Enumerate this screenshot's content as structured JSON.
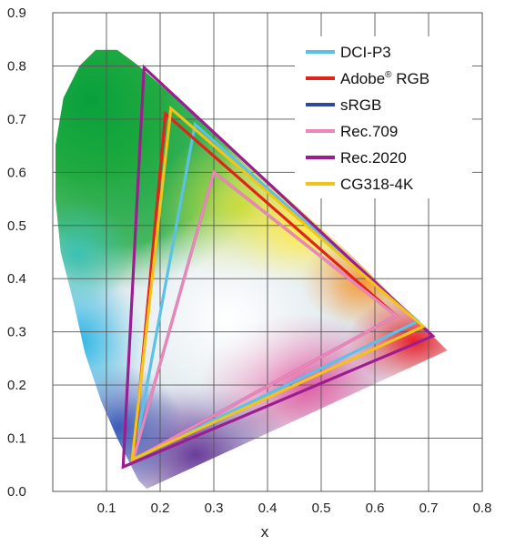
{
  "chart_data": {
    "type": "scatter",
    "title": "",
    "xlabel": "x",
    "ylabel": "",
    "xlim": [
      0.0,
      0.8
    ],
    "ylim": [
      0.0,
      0.9
    ],
    "x_ticks": [
      "0.1",
      "0.2",
      "0.3",
      "0.4",
      "0.5",
      "0.6",
      "0.7",
      "0.8"
    ],
    "y_ticks": [
      "0.0",
      "0.1",
      "0.2",
      "0.3",
      "0.4",
      "0.5",
      "0.6",
      "0.7",
      "0.8",
      "0.9"
    ],
    "grid": true,
    "legend_position": "top-right",
    "spectral_locus": [
      [
        0.175,
        0.005
      ],
      [
        0.16,
        0.02
      ],
      [
        0.14,
        0.06
      ],
      [
        0.12,
        0.1
      ],
      [
        0.09,
        0.17
      ],
      [
        0.06,
        0.26
      ],
      [
        0.04,
        0.35
      ],
      [
        0.015,
        0.45
      ],
      [
        0.005,
        0.55
      ],
      [
        0.005,
        0.65
      ],
      [
        0.02,
        0.74
      ],
      [
        0.05,
        0.8
      ],
      [
        0.08,
        0.83
      ],
      [
        0.12,
        0.83
      ],
      [
        0.16,
        0.8
      ],
      [
        0.25,
        0.72
      ],
      [
        0.35,
        0.63
      ],
      [
        0.45,
        0.54
      ],
      [
        0.55,
        0.45
      ],
      [
        0.65,
        0.35
      ],
      [
        0.735,
        0.265
      ]
    ],
    "series": [
      {
        "name": "DCI-P3",
        "color": "#5bc2e7",
        "points": [
          [
            0.68,
            0.32
          ],
          [
            0.265,
            0.69
          ],
          [
            0.15,
            0.06
          ]
        ]
      },
      {
        "name": "Adobe® RGB",
        "color": "#e2231a",
        "points": [
          [
            0.64,
            0.33
          ],
          [
            0.21,
            0.71
          ],
          [
            0.15,
            0.06
          ]
        ]
      },
      {
        "name": "sRGB",
        "color": "#2b4a9e",
        "points": [
          [
            0.64,
            0.33
          ],
          [
            0.3,
            0.6
          ],
          [
            0.15,
            0.06
          ]
        ]
      },
      {
        "name": "Rec.709",
        "color": "#ec86b8",
        "points": [
          [
            0.64,
            0.33
          ],
          [
            0.3,
            0.6
          ],
          [
            0.15,
            0.06
          ]
        ]
      },
      {
        "name": "Rec.2020",
        "color": "#9b1d8f",
        "points": [
          [
            0.708,
            0.292
          ],
          [
            0.17,
            0.797
          ],
          [
            0.131,
            0.046
          ]
        ]
      },
      {
        "name": "CG318-4K",
        "color": "#f2c318",
        "points": [
          [
            0.69,
            0.31
          ],
          [
            0.22,
            0.72
          ],
          [
            0.148,
            0.06
          ]
        ]
      }
    ]
  },
  "legend": {
    "dci": "DCI-P3",
    "adobe_main": "Adobe",
    "adobe_sup": "®",
    "adobe_rest": " RGB",
    "srgb": "sRGB",
    "rec709": "Rec.709",
    "rec2020": "Rec.2020",
    "cg": "CG318-4K"
  }
}
